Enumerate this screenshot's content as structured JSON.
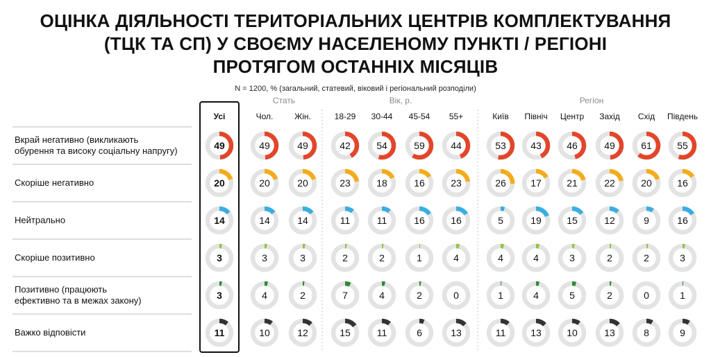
{
  "title_lines": [
    "ОЦІНКА ДІЯЛЬНОСТІ ТЕРИТОРІАЛЬНИХ ЦЕНТРІВ КОМПЛЕКТУВАННЯ",
    "(ТЦК ТА СП) У СВОЄМУ НАСЕЛЕНОМУ ПУНКТІ / РЕГІОНІ",
    "ПРОТЯГОМ ОСТАННІХ МІСЯЦІВ"
  ],
  "subtitle": "N = 1200, % (загальний, статевий, віковий і регіональний розподіли)",
  "groups": [
    {
      "label": "Стать"
    },
    {
      "label": "Вік, р."
    },
    {
      "label": "Регіон"
    }
  ],
  "chart_data": {
    "type": "table",
    "columns": [
      "Усі",
      "Чол.",
      "Жін.",
      "18-29",
      "30-44",
      "45-54",
      "55+",
      "Київ",
      "Північ",
      "Центр",
      "Захід",
      "Схід",
      "Південь"
    ],
    "column_groups": [
      {
        "label": "",
        "columns": [
          "Усі"
        ]
      },
      {
        "label": "Стать",
        "columns": [
          "Чол.",
          "Жін."
        ]
      },
      {
        "label": "Вік, р.",
        "columns": [
          "18-29",
          "30-44",
          "45-54",
          "55+"
        ]
      },
      {
        "label": "Регіон",
        "columns": [
          "Київ",
          "Північ",
          "Центр",
          "Захід",
          "Схід",
          "Південь"
        ]
      }
    ],
    "highlighted_column": "Усі",
    "unit": "%",
    "rows": [
      {
        "lines": [
          "Вкрай негативно (викликають",
          "обурення та високу соціальну напругу)"
        ],
        "color": "#e2462a",
        "values": [
          49,
          49,
          49,
          42,
          54,
          59,
          44,
          53,
          43,
          46,
          49,
          61,
          55
        ]
      },
      {
        "lines": [
          "Скоріше негативно"
        ],
        "color": "#f4ac1c",
        "values": [
          20,
          20,
          20,
          23,
          18,
          16,
          23,
          26,
          17,
          21,
          22,
          20,
          16
        ]
      },
      {
        "lines": [
          "Нейтрально"
        ],
        "color": "#3aaee0",
        "values": [
          14,
          14,
          14,
          11,
          11,
          16,
          16,
          5,
          19,
          15,
          12,
          9,
          16
        ]
      },
      {
        "lines": [
          "Скоріше позитивно"
        ],
        "color": "#8cc63f",
        "values": [
          3,
          3,
          3,
          2,
          2,
          1,
          4,
          4,
          4,
          3,
          2,
          2,
          3
        ]
      },
      {
        "lines": [
          "Позитивно (працюють",
          "ефективно та в межах закону)"
        ],
        "color": "#2e8b35",
        "values": [
          3,
          4,
          2,
          7,
          4,
          2,
          0,
          1,
          4,
          5,
          2,
          0,
          1
        ]
      },
      {
        "lines": [
          "Важко відповісти"
        ],
        "color": "#333333",
        "values": [
          11,
          10,
          12,
          15,
          11,
          6,
          13,
          11,
          13,
          10,
          13,
          8,
          9
        ]
      }
    ],
    "track_color": "#e3e3e3"
  }
}
